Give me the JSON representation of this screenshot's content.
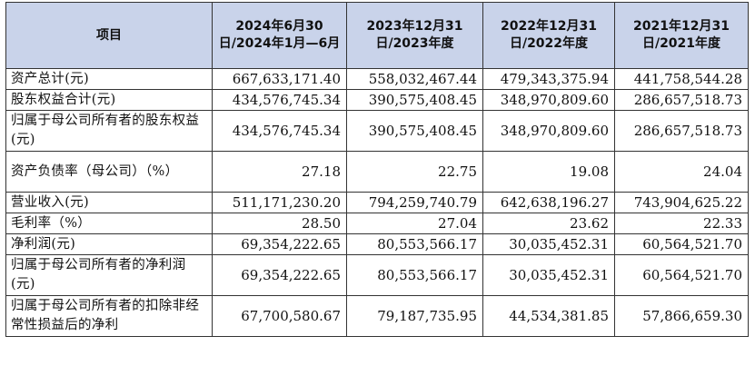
{
  "header": {
    "item": "项目",
    "col1": "2024年6月30日/2024年1月—6月",
    "col2": "2023年12月31日/2023年度",
    "col3": "2022年12月31日/2022年度",
    "col4": "2021年12月31日/2021年度"
  },
  "rows": [
    {
      "label": "资产总计(元)",
      "v1": "667,633,171.40",
      "v2": "558,032,467.44",
      "v3": "479,343,375.94",
      "v4": "441,758,544.28"
    },
    {
      "label": "股东权益合计(元)",
      "v1": "434,576,745.34",
      "v2": "390,575,408.45",
      "v3": "348,970,809.60",
      "v4": "286,657,518.73"
    },
    {
      "label": "归属于母公司所有者的股东权益(元)",
      "v1": "434,576,745.34",
      "v2": "390,575,408.45",
      "v3": "348,970,809.60",
      "v4": "286,657,518.73"
    },
    {
      "label": "资产负债率（母公司）（%）",
      "v1": "27.18",
      "v2": "22.75",
      "v3": "19.08",
      "v4": "24.04"
    },
    {
      "label": "营业收入(元)",
      "v1": "511,171,230.20",
      "v2": "794,259,740.79",
      "v3": "642,638,196.27",
      "v4": "743,904,625.22"
    },
    {
      "label": "毛利率（%）",
      "v1": "28.50",
      "v2": "27.04",
      "v3": "23.62",
      "v4": "22.33"
    },
    {
      "label": "净利润(元)",
      "v1": "69,354,222.65",
      "v2": "80,553,566.17",
      "v3": "30,035,452.31",
      "v4": "60,564,521.70"
    },
    {
      "label": "归属于母公司所有者的净利润(元)",
      "v1": "69,354,222.65",
      "v2": "80,553,566.17",
      "v3": "30,035,452.31",
      "v4": "60,564,521.70"
    },
    {
      "label": "归属于母公司所有者的扣除非经常性损益后的净利",
      "v1": "67,700,580.67",
      "v2": "79,187,735.95",
      "v3": "44,534,381.85",
      "v4": "57,866,659.30"
    }
  ]
}
